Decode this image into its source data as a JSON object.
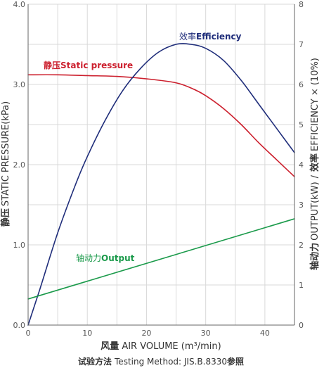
{
  "chart_data": {
    "type": "line",
    "x_axis": {
      "label_cn": "风量",
      "label_en": "AIR VOLUME (m³/min)",
      "range": [
        0,
        45
      ],
      "ticks": [
        0,
        10,
        20,
        30,
        40
      ]
    },
    "y_left": {
      "label_cn": "静压",
      "label_en": "STATIC PRESSURE(kPa)",
      "range": [
        0,
        4
      ],
      "ticks": [
        0,
        1,
        2,
        3,
        4
      ],
      "tick_labels": [
        "0.0",
        "1.0",
        "2.0",
        "3.0",
        "4.0"
      ]
    },
    "y_right": {
      "label_cn_1": "轴动力",
      "label_en_1": "OUTPUT(kW)",
      "separator": "/",
      "label_cn_2": "效率",
      "label_en_2": "EFFICIENCY × (10%)",
      "range": [
        0,
        8
      ],
      "ticks": [
        0,
        1,
        2,
        3,
        4,
        5,
        6,
        7,
        8
      ]
    },
    "grid": true,
    "series": [
      {
        "key": "static_pressure",
        "name_cn": "静压",
        "name_en": "Static pressure",
        "axis": "left",
        "color": "#cc1f2d",
        "x": [
          0,
          5,
          10,
          15,
          20,
          25,
          28,
          30,
          33,
          36,
          39,
          42,
          45
        ],
        "y": [
          3.12,
          3.12,
          3.11,
          3.1,
          3.07,
          3.02,
          2.94,
          2.86,
          2.7,
          2.5,
          2.27,
          2.06,
          1.85
        ]
      },
      {
        "key": "efficiency",
        "name_cn": "效率",
        "name_en": "Efficiency",
        "axis": "right",
        "color": "#1f2d7a",
        "x": [
          0,
          2,
          5,
          8,
          10,
          13,
          16,
          19,
          22,
          25,
          27.5,
          30,
          33,
          36,
          39,
          42,
          45
        ],
        "y": [
          0,
          0.9,
          2.3,
          3.5,
          4.2,
          5.1,
          5.85,
          6.4,
          6.8,
          7.0,
          7.0,
          6.9,
          6.6,
          6.1,
          5.5,
          4.9,
          4.3
        ]
      },
      {
        "key": "output",
        "name_cn": "轴动力",
        "name_en": "Output",
        "axis": "right",
        "color": "#1a9a4a",
        "x": [
          0,
          45
        ],
        "y": [
          0.65,
          2.65
        ]
      }
    ],
    "footer": {
      "cn": "试验方法",
      "en": "Testing Method: JIS.B.8330",
      "suffix": "参照"
    }
  }
}
